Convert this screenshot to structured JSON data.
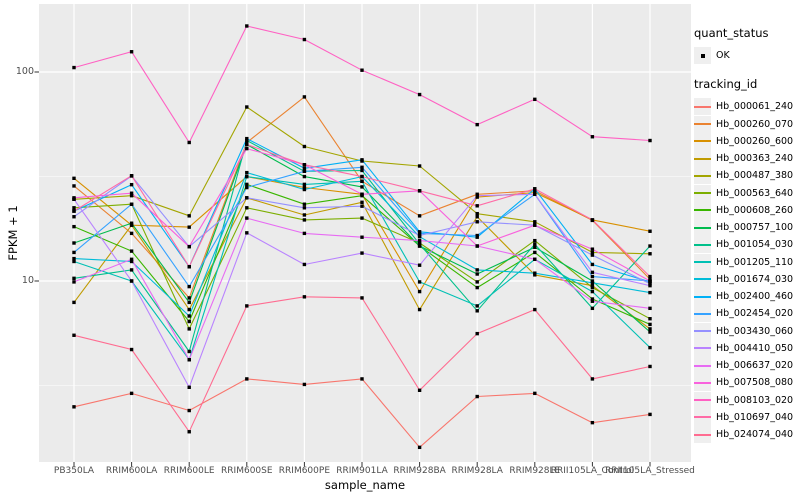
{
  "figure": {
    "background": "#FFFFFF",
    "panel_background": "#EBEBEB",
    "gridline_color": "#FFFFFF",
    "tick_color": "#333333",
    "point_color": "#000000",
    "tick_label_color": "#4D4D4D"
  },
  "axes": {
    "y_title": "FPKM + 1",
    "x_title": "sample_name",
    "y_tick_labels": [
      "100",
      "10"
    ],
    "y_tick_values": [
      100,
      10
    ],
    "y_minor_gridline_values": [
      31.62,
      3.162
    ]
  },
  "legend": {
    "quant_status_title": "quant_status",
    "quant_status_items": [
      {
        "label": "OK",
        "marker": "black-point"
      }
    ],
    "tracking_id_title": "tracking_id"
  },
  "chart_data": {
    "type": "line",
    "title": "",
    "xlabel": "sample_name",
    "ylabel": "FPKM + 1",
    "y_scale": "log10",
    "y_ticks": [
      10,
      100
    ],
    "y_range_approx": [
      1.5,
      210
    ],
    "grid": true,
    "legend_position": "right",
    "quant_status": "OK",
    "x_categories": [
      "PB350LA",
      "RRIM600LA",
      "RRIM600LE",
      "RRIM600SE",
      "RRIM600PE",
      "RRIM901LA",
      "RRIM928BA",
      "RRIM928LA",
      "RRIM928LE",
      "RRII105LA_Control",
      "RRII105LA_Stressed"
    ],
    "series": [
      {
        "name": "Hb_000061_240",
        "color": "#F8766D",
        "values": [
          2.5,
          2.9,
          2.4,
          3.4,
          3.2,
          3.4,
          1.6,
          2.8,
          2.9,
          2.1,
          2.3
        ]
      },
      {
        "name": "Hb_000260_070",
        "color": "#EA8331",
        "values": [
          28.5,
          16.9,
          8.3,
          46,
          76,
          30,
          20.5,
          26,
          27,
          19.5,
          10.2
        ]
      },
      {
        "name": "Hb_000260_600",
        "color": "#D89000",
        "values": [
          31,
          18.5,
          18.1,
          31.6,
          28,
          26,
          8.9,
          25.2,
          26.5,
          19.6,
          17.3
        ]
      },
      {
        "name": "Hb_000363_240",
        "color": "#C09B00",
        "values": [
          7.9,
          18.5,
          7.3,
          25,
          20.7,
          23.8,
          7.3,
          20.3,
          10.7,
          9.5,
          5.9
        ]
      },
      {
        "name": "Hb_000487_380",
        "color": "#A3A500",
        "values": [
          24.6,
          25.6,
          20.5,
          68,
          44,
          37.5,
          35.5,
          21,
          19.2,
          13.7,
          13.5
        ]
      },
      {
        "name": "Hb_000563_640",
        "color": "#7CAE00",
        "values": [
          22.4,
          23.3,
          5.9,
          22.4,
          19.6,
          20,
          15.2,
          9.9,
          15.6,
          9.3,
          6.6
        ]
      },
      {
        "name": "Hb_000608_260",
        "color": "#39B600",
        "values": [
          18.2,
          13.9,
          6.4,
          29,
          23.3,
          25.6,
          14.7,
          9.3,
          13.7,
          8.2,
          6.2
        ]
      },
      {
        "name": "Hb_000757_100",
        "color": "#00BB4E",
        "values": [
          15.2,
          18.9,
          7.9,
          45,
          31.6,
          28.2,
          14.7,
          10.8,
          14.5,
          10,
          5.7
        ]
      },
      {
        "name": "Hb_001054_030",
        "color": "#00C08B",
        "values": [
          10.3,
          11.3,
          4.6,
          47,
          33.5,
          33.8,
          15,
          7.2,
          15,
          7.4,
          14.7
        ]
      },
      {
        "name": "Hb_001205_110",
        "color": "#00C0B4",
        "values": [
          12.4,
          10,
          4.2,
          31.6,
          29,
          30,
          9.9,
          7.6,
          12.7,
          8.9,
          4.8
        ]
      },
      {
        "name": "Hb_001674_030",
        "color": "#00BCD8",
        "values": [
          12.8,
          12.4,
          6.8,
          33,
          27.4,
          31.6,
          16.3,
          11.3,
          10.9,
          9.8,
          8.8
        ]
      },
      {
        "name": "Hb_002400_460",
        "color": "#00B0F6",
        "values": [
          21.6,
          28.9,
          11.7,
          48,
          34.6,
          38,
          17.2,
          16.2,
          27.6,
          12,
          9.9
        ]
      },
      {
        "name": "Hb_002454_020",
        "color": "#35A2FF",
        "values": [
          13.7,
          23.3,
          9.4,
          28,
          33.5,
          35,
          16.9,
          16.5,
          26,
          10.5,
          10
        ]
      },
      {
        "name": "Hb_003430_060",
        "color": "#9590FF",
        "values": [
          20.3,
          31.8,
          14.6,
          25,
          22.4,
          22.8,
          16.5,
          19.2,
          18.5,
          13.3,
          9.7
        ]
      },
      {
        "name": "Hb_004410_050",
        "color": "#B983FF",
        "values": [
          24.6,
          10,
          3.1,
          17,
          12,
          13.6,
          11.9,
          25.6,
          26,
          11,
          9.5
        ]
      },
      {
        "name": "Hb_006637_020",
        "color": "#E76BF3",
        "values": [
          9.9,
          12.7,
          4.2,
          20,
          16.9,
          16.2,
          15.6,
          14.7,
          12.7,
          8,
          7.4
        ]
      },
      {
        "name": "Hb_007508_080",
        "color": "#F962DD",
        "values": [
          25,
          26.3,
          14.6,
          43,
          36,
          26,
          27,
          14.7,
          18.5,
          14.2,
          10
        ]
      },
      {
        "name": "Hb_008103_020",
        "color": "#FF61C3",
        "values": [
          105,
          125,
          46,
          166,
          143,
          102,
          78,
          56,
          74,
          49,
          47
        ]
      },
      {
        "name": "Hb_010697_040",
        "color": "#FF6BA6",
        "values": [
          21.6,
          31.9,
          11.7,
          45,
          36,
          31.6,
          27,
          22.9,
          27.6,
          19.6,
          10.5
        ]
      },
      {
        "name": "Hb_024074_040",
        "color": "#FF6C91",
        "values": [
          5.5,
          4.7,
          1.9,
          7.6,
          8.4,
          8.3,
          3,
          5.6,
          7.3,
          3.4,
          3.9
        ]
      }
    ]
  }
}
